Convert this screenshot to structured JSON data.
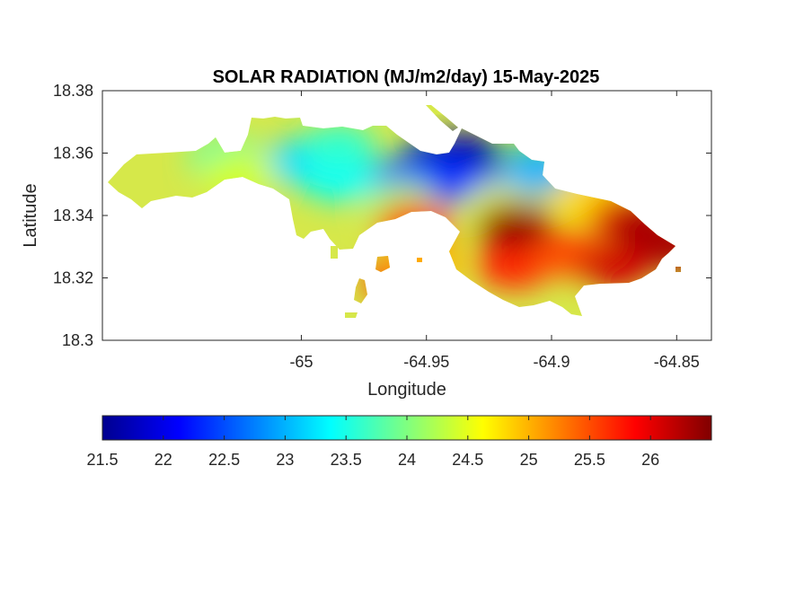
{
  "chart_data": {
    "type": "heatmap",
    "title": "SOLAR RADIATION (MJ/m2/day) 15-May-2025",
    "xlabel": "Longitude",
    "ylabel": "Latitude",
    "xlim": [
      -65.0795,
      -64.8361
    ],
    "ylim": [
      18.3,
      18.38
    ],
    "x_ticks": [
      -65,
      -64.95,
      -64.9,
      -64.85
    ],
    "x_tick_labels": [
      "-65",
      "-64.95",
      "-64.9",
      "-64.85"
    ],
    "y_ticks": [
      18.3,
      18.32,
      18.34,
      18.36,
      18.38
    ],
    "y_tick_labels": [
      "18.3",
      "18.32",
      "18.34",
      "18.36",
      "18.38"
    ],
    "colormap": "jet",
    "clim": [
      21.5,
      26.5
    ],
    "colorbar_ticks": [
      21.5,
      22,
      22.5,
      23,
      23.5,
      24,
      24.5,
      25,
      25.5,
      26
    ],
    "colorbar_tick_labels": [
      "21.5",
      "22",
      "22.5",
      "23",
      "23.5",
      "24",
      "24.5",
      "25",
      "25.5",
      "26"
    ],
    "colorbar_location": "south",
    "grid": false,
    "regions": [
      {
        "lon": -64.935,
        "lat": 18.359,
        "value": 21.7
      },
      {
        "lon": -64.945,
        "lat": 18.358,
        "value": 21.8
      },
      {
        "lon": -64.94,
        "lat": 18.351,
        "value": 22.3
      },
      {
        "lon": -64.96,
        "lat": 18.351,
        "value": 22.6
      },
      {
        "lon": -64.92,
        "lat": 18.346,
        "value": 22.8
      },
      {
        "lon": -64.905,
        "lat": 18.355,
        "value": 23.0
      },
      {
        "lon": -65.0,
        "lat": 18.357,
        "value": 23.2
      },
      {
        "lon": -64.985,
        "lat": 18.352,
        "value": 23.4
      },
      {
        "lon": -64.985,
        "lat": 18.362,
        "value": 23.6
      },
      {
        "lon": -65.03,
        "lat": 18.358,
        "value": 23.8
      },
      {
        "lon": -64.96,
        "lat": 18.343,
        "value": 24.2
      },
      {
        "lon": -65.025,
        "lat": 18.353,
        "value": 24.4
      },
      {
        "lon": -64.92,
        "lat": 18.342,
        "value": 24.5
      },
      {
        "lon": -64.885,
        "lat": 18.345,
        "value": 24.8
      },
      {
        "lon": -64.885,
        "lat": 18.326,
        "value": 25.0
      },
      {
        "lon": -64.955,
        "lat": 18.337,
        "value": 25.6
      },
      {
        "lon": -64.915,
        "lat": 18.324,
        "value": 25.7
      },
      {
        "lon": -64.895,
        "lat": 18.328,
        "value": 25.5
      },
      {
        "lon": -64.87,
        "lat": 18.339,
        "value": 26.0
      },
      {
        "lon": -64.875,
        "lat": 18.324,
        "value": 26.1
      },
      {
        "lon": -64.862,
        "lat": 18.336,
        "value": 26.3
      },
      {
        "lon": -64.85,
        "lat": 18.33,
        "value": 26.3
      },
      {
        "lon": -64.915,
        "lat": 18.337,
        "value": 26.4
      },
      {
        "lon": -64.96,
        "lat": 18.319,
        "value": 25.6
      },
      {
        "lon": -64.95,
        "lat": 18.325,
        "value": 25.0
      }
    ]
  }
}
